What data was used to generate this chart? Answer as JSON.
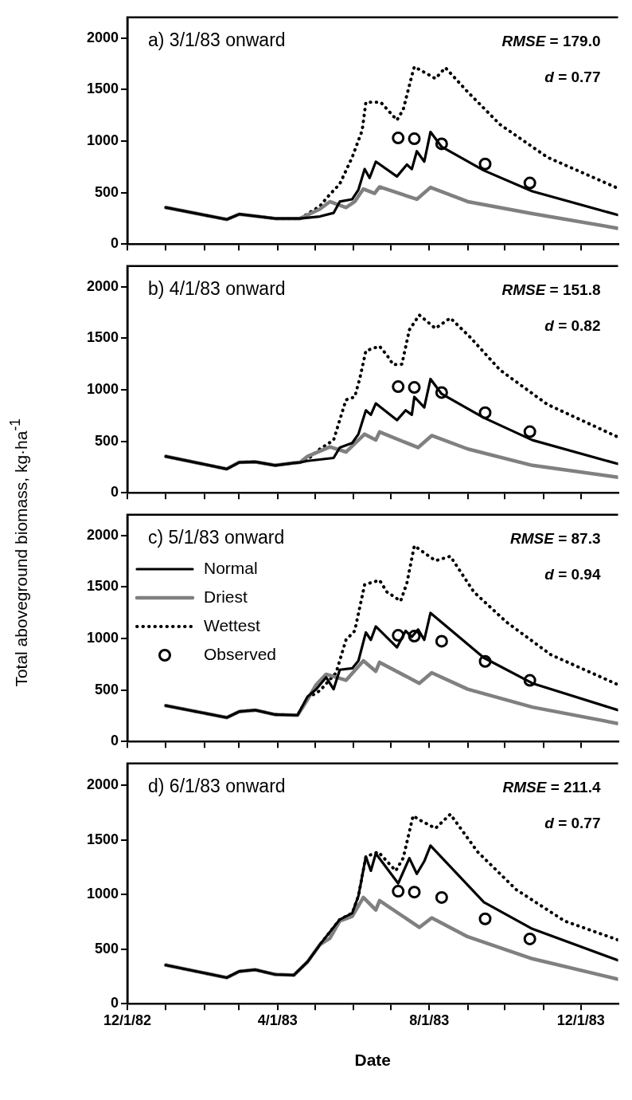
{
  "chart_data": [
    {
      "type": "line",
      "title": "a) 3/1/83 onward",
      "annotations": [
        "RMSE = 179.0",
        "d = 0.77"
      ],
      "xlim": [
        "1982-12-01",
        "1983-12-31"
      ],
      "xticks": [
        {
          "value": "1982-12-01",
          "label": null
        },
        {
          "value": "1983-01-01",
          "label": null
        },
        {
          "value": "1983-02-01",
          "label": null
        },
        {
          "value": "1983-03-01",
          "label": null
        },
        {
          "value": "1983-04-01",
          "label": null
        },
        {
          "value": "1983-05-01",
          "label": null
        },
        {
          "value": "1983-06-01",
          "label": null
        },
        {
          "value": "1983-07-01",
          "label": null
        },
        {
          "value": "1983-08-01",
          "label": null
        },
        {
          "value": "1983-09-01",
          "label": null
        },
        {
          "value": "1983-10-01",
          "label": null
        },
        {
          "value": "1983-11-01",
          "label": null
        },
        {
          "value": "1983-12-01",
          "label": null
        }
      ],
      "ylim": [
        0,
        2200
      ],
      "yticks": [
        0,
        500,
        1000,
        1500,
        2000
      ],
      "tick_labels": "y",
      "series": [
        {
          "type": "line",
          "color": "#000000",
          "line_style": "solid",
          "x": [
            "1983-01-01",
            "1983-02-19",
            "1983-03-01",
            "1983-03-30",
            "1983-04-19",
            "1983-05-05",
            "1983-05-16",
            "1983-05-21",
            "1983-05-31",
            "1983-06-05",
            "1983-06-10",
            "1983-06-14",
            "1983-06-19",
            "1983-07-06",
            "1983-07-14",
            "1983-07-18",
            "1983-07-22",
            "1983-07-28",
            "1983-08-02",
            "1983-08-11",
            "1983-09-14",
            "1983-10-23",
            "1983-12-31"
          ],
          "values": [
            355,
            239,
            290,
            248,
            248,
            268,
            302,
            412,
            435,
            527,
            728,
            642,
            800,
            656,
            771,
            728,
            901,
            800,
            1088,
            944,
            714,
            512,
            282
          ]
        },
        {
          "type": "line",
          "color": "#808080",
          "line_style": "solid",
          "x": [
            "1983-01-01",
            "1983-02-19",
            "1983-03-01",
            "1983-03-30",
            "1983-04-19",
            "1983-05-05",
            "1983-05-13",
            "1983-05-26",
            "1983-06-02",
            "1983-06-09",
            "1983-06-18",
            "1983-06-22",
            "1983-07-22",
            "1983-08-02",
            "1983-09-01",
            "1983-10-23",
            "1983-12-31"
          ],
          "values": [
            355,
            239,
            290,
            248,
            248,
            340,
            412,
            354,
            412,
            535,
            492,
            555,
            435,
            550,
            412,
            296,
            153
          ]
        },
        {
          "type": "line",
          "color": "#000000",
          "line_style": "dotted",
          "x": [
            "1983-01-01",
            "1983-02-19",
            "1983-03-01",
            "1983-03-30",
            "1983-04-19",
            "1983-05-05",
            "1983-05-11",
            "1983-05-21",
            "1983-05-31",
            "1983-06-08",
            "1983-06-11",
            "1983-06-23",
            "1983-07-06",
            "1983-07-11",
            "1983-07-18",
            "1983-07-20",
            "1983-08-06",
            "1983-08-14",
            "1983-09-01",
            "1983-09-27",
            "1983-11-04",
            "1983-12-31"
          ],
          "values": [
            355,
            239,
            290,
            248,
            248,
            368,
            455,
            584,
            843,
            1102,
            1376,
            1376,
            1203,
            1304,
            1635,
            1721,
            1606,
            1712,
            1476,
            1160,
            843,
            541
          ]
        },
        {
          "type": "scatter",
          "color": "#000000",
          "marker": "circle",
          "x": [
            "1983-07-07",
            "1983-07-20",
            "1983-08-11",
            "1983-09-15",
            "1983-10-21"
          ],
          "values": [
            1030,
            1022,
            973,
            777,
            593
          ]
        }
      ]
    },
    {
      "type": "line",
      "title": "b) 4/1/83 onward",
      "annotations": [
        "RMSE = 151.8",
        "d = 0.82"
      ],
      "xlim": [
        "1982-12-01",
        "1983-12-31"
      ],
      "xticks": [
        {
          "value": "1982-12-01",
          "label": null
        },
        {
          "value": "1983-01-01",
          "label": null
        },
        {
          "value": "1983-02-01",
          "label": null
        },
        {
          "value": "1983-03-01",
          "label": null
        },
        {
          "value": "1983-04-01",
          "label": null
        },
        {
          "value": "1983-05-01",
          "label": null
        },
        {
          "value": "1983-06-01",
          "label": null
        },
        {
          "value": "1983-07-01",
          "label": null
        },
        {
          "value": "1983-08-01",
          "label": null
        },
        {
          "value": "1983-09-01",
          "label": null
        },
        {
          "value": "1983-10-01",
          "label": null
        },
        {
          "value": "1983-11-01",
          "label": null
        },
        {
          "value": "1983-12-01",
          "label": null
        }
      ],
      "ylim": [
        0,
        2200
      ],
      "yticks": [
        0,
        500,
        1000,
        1500,
        2000
      ],
      "tick_labels": "y",
      "series": [
        {
          "type": "line",
          "color": "#000000",
          "line_style": "solid",
          "x": [
            "1983-01-01",
            "1983-02-19",
            "1983-03-01",
            "1983-03-14",
            "1983-03-30",
            "1983-04-14",
            "1983-04-19",
            "1983-04-25",
            "1983-05-16",
            "1983-05-21",
            "1983-05-31",
            "1983-06-05",
            "1983-06-11",
            "1983-06-15",
            "1983-06-19",
            "1983-07-06",
            "1983-07-13",
            "1983-07-18",
            "1983-07-20",
            "1983-07-28",
            "1983-08-02",
            "1983-08-11",
            "1983-09-14",
            "1983-10-23",
            "1983-12-31"
          ],
          "values": [
            353,
            231,
            295,
            300,
            266,
            289,
            295,
            309,
            338,
            439,
            483,
            569,
            800,
            757,
            867,
            705,
            800,
            757,
            930,
            829,
            1104,
            959,
            728,
            511,
            280
          ]
        },
        {
          "type": "line",
          "color": "#808080",
          "line_style": "solid",
          "x": [
            "1983-01-01",
            "1983-02-19",
            "1983-03-01",
            "1983-03-14",
            "1983-03-30",
            "1983-04-14",
            "1983-04-19",
            "1983-04-25",
            "1983-05-13",
            "1983-05-26",
            "1983-06-10",
            "1983-06-19",
            "1983-06-22",
            "1983-07-23",
            "1983-08-03",
            "1983-09-01",
            "1983-10-23",
            "1983-12-31"
          ],
          "values": [
            353,
            231,
            295,
            300,
            266,
            289,
            295,
            353,
            445,
            396,
            569,
            512,
            590,
            439,
            555,
            425,
            266,
            150
          ]
        },
        {
          "type": "line",
          "color": "#000000",
          "line_style": "dotted",
          "x": [
            "1983-01-01",
            "1983-02-19",
            "1983-03-01",
            "1983-03-14",
            "1983-03-30",
            "1983-04-14",
            "1983-04-19",
            "1983-04-25",
            "1983-05-05",
            "1983-05-16",
            "1983-05-26",
            "1983-06-02",
            "1983-06-06",
            "1983-06-11",
            "1983-06-22",
            "1983-06-28",
            "1983-07-03",
            "1983-07-10",
            "1983-07-16",
            "1983-07-24",
            "1983-08-06",
            "1983-08-18",
            "1983-09-03",
            "1983-09-27",
            "1983-11-04",
            "1983-12-31"
          ],
          "values": [
            353,
            231,
            295,
            300,
            266,
            289,
            295,
            324,
            425,
            511,
            902,
            930,
            1104,
            1378,
            1422,
            1335,
            1243,
            1248,
            1581,
            1725,
            1595,
            1696,
            1509,
            1191,
            858,
            540
          ]
        },
        {
          "type": "scatter",
          "color": "#000000",
          "marker": "circle",
          "x": [
            "1983-07-07",
            "1983-07-20",
            "1983-08-11",
            "1983-09-15",
            "1983-10-21"
          ],
          "values": [
            1030,
            1022,
            973,
            777,
            593
          ]
        }
      ]
    },
    {
      "type": "line",
      "title": "c) 5/1/83 onward",
      "ylabel": "Total aboveground biomass, kg·ha$^{-1}$",
      "annotations": [
        "RMSE = 87.3",
        "d = 0.94"
      ],
      "legend": "left",
      "xlim": [
        "1982-12-01",
        "1983-12-31"
      ],
      "xticks": [
        {
          "value": "1982-12-01",
          "label": null
        },
        {
          "value": "1983-01-01",
          "label": null
        },
        {
          "value": "1983-02-01",
          "label": null
        },
        {
          "value": "1983-03-01",
          "label": null
        },
        {
          "value": "1983-04-01",
          "label": null
        },
        {
          "value": "1983-05-01",
          "label": null
        },
        {
          "value": "1983-06-01",
          "label": null
        },
        {
          "value": "1983-07-01",
          "label": null
        },
        {
          "value": "1983-08-01",
          "label": null
        },
        {
          "value": "1983-09-01",
          "label": null
        },
        {
          "value": "1983-10-01",
          "label": null
        },
        {
          "value": "1983-11-01",
          "label": null
        },
        {
          "value": "1983-12-01",
          "label": null
        }
      ],
      "ylim": [
        0,
        2200
      ],
      "yticks": [
        0,
        500,
        1000,
        1500,
        2000
      ],
      "tick_labels": "y",
      "series": [
        {
          "name": "Normal",
          "type": "line",
          "color": "#000000",
          "line_style": "solid",
          "x": [
            "1983-01-01",
            "1983-02-19",
            "1983-03-01",
            "1983-03-14",
            "1983-03-30",
            "1983-04-17",
            "1983-04-25",
            "1983-05-02",
            "1983-05-10",
            "1983-05-16",
            "1983-05-21",
            "1983-05-31",
            "1983-06-05",
            "1983-06-11",
            "1983-06-15",
            "1983-06-19",
            "1983-07-06",
            "1983-07-13",
            "1983-07-18",
            "1983-07-23",
            "1983-07-28",
            "1983-08-02",
            "1983-09-14",
            "1983-10-23",
            "1983-12-31"
          ],
          "values": [
            348,
            232,
            290,
            304,
            261,
            255,
            435,
            507,
            623,
            507,
            696,
            710,
            783,
            1058,
            986,
            1116,
            913,
            1073,
            1015,
            1087,
            986,
            1247,
            812,
            565,
            304
          ]
        },
        {
          "name": "Driest",
          "type": "line",
          "color": "#808080",
          "line_style": "solid",
          "x": [
            "1983-01-01",
            "1983-02-19",
            "1983-03-01",
            "1983-03-14",
            "1983-03-30",
            "1983-04-17",
            "1983-04-25",
            "1983-05-02",
            "1983-05-10",
            "1983-05-26",
            "1983-06-09",
            "1983-06-19",
            "1983-06-22",
            "1983-07-24",
            "1983-08-03",
            "1983-09-01",
            "1983-10-23",
            "1983-12-31"
          ],
          "values": [
            348,
            232,
            290,
            304,
            261,
            255,
            406,
            551,
            652,
            594,
            783,
            681,
            768,
            565,
            667,
            507,
            333,
            174
          ]
        },
        {
          "name": "Wettest",
          "type": "line",
          "color": "#000000",
          "line_style": "dotted",
          "x": [
            "1983-01-01",
            "1983-02-19",
            "1983-03-01",
            "1983-03-14",
            "1983-03-30",
            "1983-04-17",
            "1983-04-25",
            "1983-05-05",
            "1983-05-18",
            "1983-05-26",
            "1983-06-02",
            "1983-06-10",
            "1983-06-22",
            "1983-06-28",
            "1983-07-09",
            "1983-07-14",
            "1983-07-20",
            "1983-08-06",
            "1983-08-18",
            "1983-09-06",
            "1983-10-02",
            "1983-11-07",
            "1983-12-31"
          ],
          "values": [
            348,
            232,
            290,
            304,
            261,
            255,
            420,
            493,
            667,
            986,
            1073,
            1522,
            1565,
            1450,
            1363,
            1537,
            1899,
            1754,
            1797,
            1450,
            1160,
            841,
            551
          ]
        },
        {
          "name": "Observed",
          "type": "scatter",
          "color": "#000000",
          "marker": "circle",
          "x": [
            "1983-07-07",
            "1983-07-20",
            "1983-08-11",
            "1983-09-15",
            "1983-10-21"
          ],
          "values": [
            1030,
            1022,
            973,
            777,
            593
          ]
        }
      ]
    },
    {
      "type": "line",
      "title": "d) 6/1/83 onward",
      "xlabel": "Date",
      "annotations": [
        "RMSE = 211.4",
        "d = 0.77"
      ],
      "xlim": [
        "1982-12-01",
        "1983-12-31"
      ],
      "xticks": [
        {
          "value": "1982-12-01",
          "label": "12/1/82"
        },
        {
          "value": "1983-01-01",
          "label": null
        },
        {
          "value": "1983-02-01",
          "label": null
        },
        {
          "value": "1983-03-01",
          "label": null
        },
        {
          "value": "1983-04-01",
          "label": "4/1/83"
        },
        {
          "value": "1983-05-01",
          "label": null
        },
        {
          "value": "1983-06-01",
          "label": null
        },
        {
          "value": "1983-07-01",
          "label": null
        },
        {
          "value": "1983-08-01",
          "label": "8/1/83"
        },
        {
          "value": "1983-09-01",
          "label": null
        },
        {
          "value": "1983-10-01",
          "label": null
        },
        {
          "value": "1983-11-01",
          "label": null
        },
        {
          "value": "1983-12-01",
          "label": "12/1/83"
        }
      ],
      "ylim": [
        0,
        2200
      ],
      "yticks": [
        0,
        500,
        1000,
        1500,
        2000
      ],
      "series": [
        {
          "type": "line",
          "color": "#000000",
          "line_style": "solid",
          "x": [
            "1983-01-01",
            "1983-02-19",
            "1983-03-01",
            "1983-03-14",
            "1983-03-30",
            "1983-04-14",
            "1983-04-25",
            "1983-05-05",
            "1983-05-21",
            "1983-05-31",
            "1983-06-05",
            "1983-06-11",
            "1983-06-15",
            "1983-06-19",
            "1983-07-07",
            "1983-07-16",
            "1983-07-22",
            "1983-07-28",
            "1983-08-02",
            "1983-09-14",
            "1983-10-23",
            "1983-12-31"
          ],
          "values": [
            354,
            239,
            296,
            311,
            268,
            262,
            383,
            541,
            771,
            829,
            987,
            1347,
            1217,
            1376,
            1102,
            1333,
            1189,
            1304,
            1448,
            930,
            685,
            397
          ]
        },
        {
          "type": "line",
          "color": "#808080",
          "line_style": "solid",
          "x": [
            "1983-01-01",
            "1983-02-19",
            "1983-03-01",
            "1983-03-14",
            "1983-03-30",
            "1983-04-14",
            "1983-04-25",
            "1983-05-05",
            "1983-05-13",
            "1983-05-21",
            "1983-05-31",
            "1983-06-09",
            "1983-06-19",
            "1983-06-22",
            "1983-07-24",
            "1983-08-03",
            "1983-09-01",
            "1983-10-23",
            "1983-12-31"
          ],
          "values": [
            354,
            239,
            296,
            311,
            268,
            262,
            383,
            541,
            599,
            757,
            800,
            973,
            858,
            944,
            699,
            786,
            613,
            412,
            224
          ]
        },
        {
          "type": "line",
          "color": "#000000",
          "line_style": "dotted",
          "x": [
            "1983-01-01",
            "1983-02-19",
            "1983-03-01",
            "1983-03-14",
            "1983-03-30",
            "1983-04-14",
            "1983-04-25",
            "1983-05-05",
            "1983-05-21",
            "1983-05-31",
            "1983-06-05",
            "1983-06-11",
            "1983-06-21",
            "1983-07-05",
            "1983-07-11",
            "1983-07-19",
            "1983-07-25",
            "1983-08-06",
            "1983-08-18",
            "1983-09-09",
            "1983-10-10",
            "1983-11-18",
            "1983-12-31"
          ],
          "values": [
            354,
            239,
            296,
            311,
            268,
            262,
            383,
            541,
            771,
            829,
            987,
            1347,
            1390,
            1217,
            1333,
            1721,
            1678,
            1606,
            1735,
            1390,
            1045,
            757,
            584
          ]
        },
        {
          "type": "scatter",
          "color": "#000000",
          "marker": "circle",
          "x": [
            "1983-07-07",
            "1983-07-20",
            "1983-08-11",
            "1983-09-15",
            "1983-10-21"
          ],
          "values": [
            1030,
            1022,
            973,
            777,
            593
          ]
        }
      ]
    }
  ]
}
